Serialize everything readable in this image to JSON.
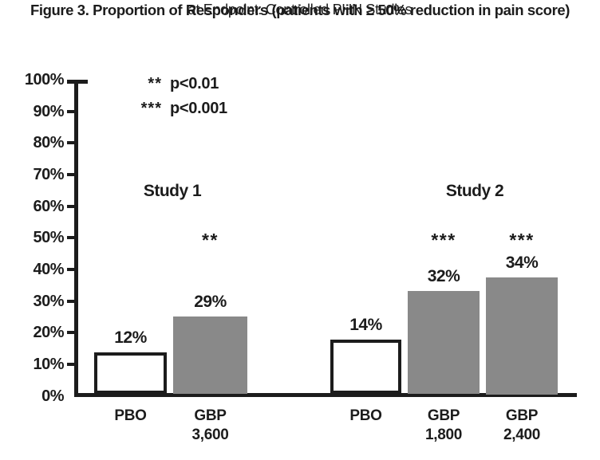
{
  "figure_title": {
    "line1": "Figure 3. Proportion of Responders (patients with ≥ 50% reduction in pain score)",
    "line2": "at Endpoint: Controlled PHN Studies"
  },
  "significance_legend": [
    {
      "symbol": "**",
      "meaning": "p<0.01"
    },
    {
      "symbol": "***",
      "meaning": "p<0.001"
    }
  ],
  "chart_data": {
    "type": "bar",
    "title": "Figure 3. Proportion of Responders (patients with ≥ 50% reduction in pain score) at Endpoint: Controlled PHN Studies",
    "xlabel": "",
    "ylabel": "",
    "ylim": [
      0,
      100
    ],
    "grid": false,
    "legend_position": "top-left-inside",
    "ytick_labels": [
      "0%",
      "10%",
      "20%",
      "30%",
      "40%",
      "50%",
      "60%",
      "70%",
      "80%",
      "90%",
      "100%"
    ],
    "groups": [
      {
        "label": "Study 1",
        "bars": [
          {
            "category": "PBO",
            "dose_line": "",
            "value_pct": 12,
            "value_label": "12%",
            "drawn_height_pct": 13.8,
            "fill": "white",
            "significance": ""
          },
          {
            "category": "GBP",
            "dose_line": "3,600",
            "value_pct": 29,
            "value_label": "29%",
            "drawn_height_pct": 25.1,
            "fill": "gray",
            "significance": "**"
          }
        ]
      },
      {
        "label": "Study 2",
        "bars": [
          {
            "category": "PBO",
            "dose_line": "",
            "value_pct": 14,
            "value_label": "14%",
            "drawn_height_pct": 17.8,
            "fill": "white",
            "significance": ""
          },
          {
            "category": "GBP",
            "dose_line": "1,800",
            "value_pct": 32,
            "value_label": "32%",
            "drawn_height_pct": 33.2,
            "fill": "gray",
            "significance": "***"
          },
          {
            "category": "GBP",
            "dose_line": "2,400",
            "value_pct": 34,
            "value_label": "34%",
            "drawn_height_pct": 37.5,
            "fill": "gray",
            "significance": "***"
          }
        ]
      }
    ],
    "colors": {
      "gray_bar": "#898989",
      "white_bar": "#ffffff",
      "ink": "#1c1c1c",
      "background": "#ffffff"
    }
  }
}
